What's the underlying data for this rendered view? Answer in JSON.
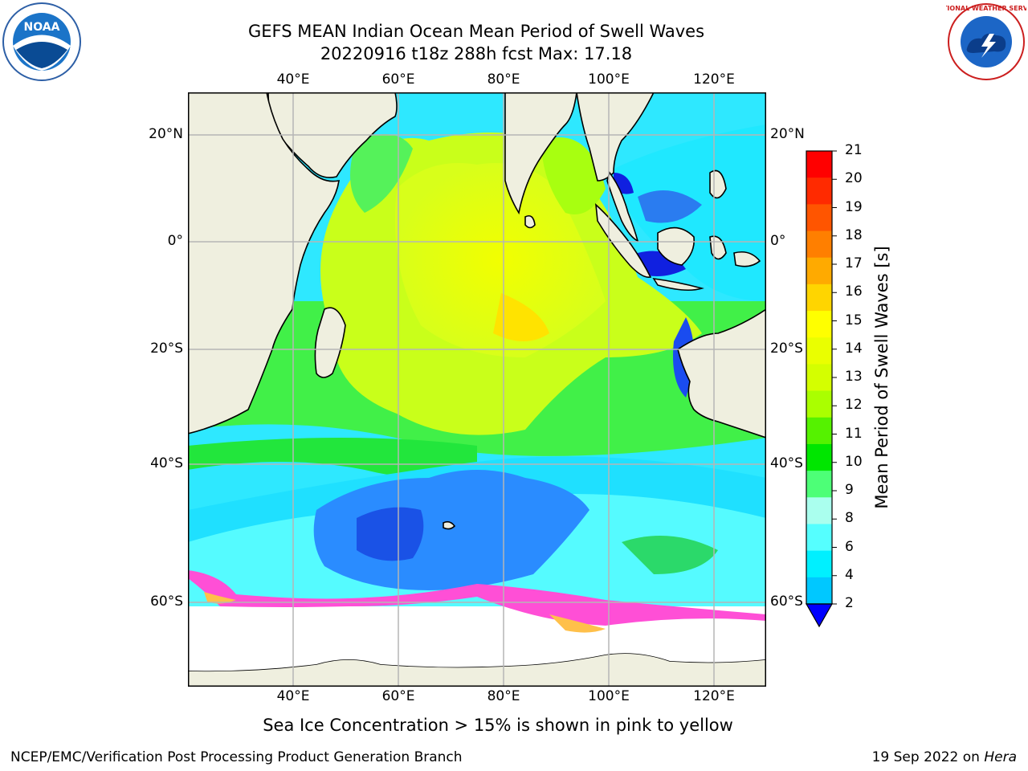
{
  "title": {
    "line1": "GEFS MEAN Indian Ocean Mean Period of Swell Waves",
    "line2": "20220916 t18z 288h fcst   Max: 17.18"
  },
  "logos": {
    "left": {
      "text": "NOAA",
      "icon": "noaa-logo"
    },
    "right": {
      "text": "NATIONAL WEATHER SERVICE",
      "icon": "nws-logo"
    }
  },
  "axes": {
    "lon_ticks": [
      "40°E",
      "60°E",
      "80°E",
      "100°E",
      "120°E"
    ],
    "lat_ticks_left": [
      "20°N",
      "0°",
      "20°S",
      "40°S",
      "60°S"
    ],
    "lat_ticks_right": [
      "20°N",
      "0°",
      "20°S",
      "40°S",
      "60°S"
    ]
  },
  "colorbar": {
    "label": "Mean Period of Swell Waves [s]",
    "ticks": [
      "21",
      "20",
      "19",
      "18",
      "17",
      "16",
      "15",
      "14",
      "13",
      "12",
      "11",
      "10",
      "9",
      "8",
      "6",
      "4",
      "2"
    ],
    "colors": [
      "#ff0000",
      "#ff2a00",
      "#ff5500",
      "#ff7f00",
      "#ffaa00",
      "#ffd500",
      "#ffff00",
      "#eaff00",
      "#d4ff00",
      "#aaff00",
      "#55f200",
      "#00e600",
      "#4dff77",
      "#aaffee",
      "#55ffff",
      "#00f0ff",
      "#00c8ff",
      "#0078ff",
      "#0000ff"
    ]
  },
  "caption": "Sea Ice Concentration > 15% is shown in pink to yellow",
  "footer": {
    "left": "NCEP/EMC/Verification Post Processing Product Generation Branch",
    "right_date": "19 Sep 2022 on ",
    "right_host": "Hera"
  }
}
